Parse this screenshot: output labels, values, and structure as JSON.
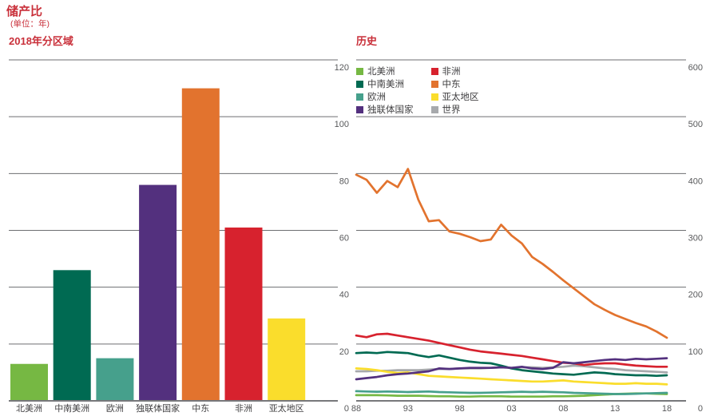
{
  "header": {
    "title": "储产比",
    "unit": "(单位：年)"
  },
  "colors": {
    "heading_red": "#c9303a",
    "axis_text": "#58595b",
    "category_text": "#414042",
    "gridline": "#6d6e71",
    "baseline": "#77787b",
    "background": "#ffffff"
  },
  "chart_data": [
    {
      "type": "bar",
      "title": "2018年分区域",
      "categories": [
        "北美洲",
        "中南美洲",
        "欧洲",
        "独联体国家",
        "中东",
        "非洲",
        "亚太地区"
      ],
      "values": [
        13,
        46,
        15,
        76,
        110,
        61,
        29
      ],
      "bar_colors": [
        "#76b843",
        "#006a52",
        "#46a08c",
        "#53307e",
        "#e2732e",
        "#d7222e",
        "#fadd2c"
      ],
      "ylim": [
        0,
        120
      ],
      "yticks": [
        0,
        20,
        40,
        60,
        80,
        100,
        120
      ],
      "y_axis_side": "right",
      "grid": true
    },
    {
      "type": "line",
      "title": "历史",
      "x_start": 1988,
      "x_end": 2018,
      "xtick_labels": [
        "88",
        "93",
        "98",
        "03",
        "08",
        "13",
        "18"
      ],
      "ylim": [
        0,
        600
      ],
      "yticks": [
        0,
        100,
        200,
        300,
        400,
        500,
        600
      ],
      "y_axis_side": "right",
      "grid": true,
      "legend_position": "top-left",
      "legend_columns": [
        [
          {
            "label": "北美洲",
            "color": "#76b843"
          },
          {
            "label": "中南美洲",
            "color": "#006a52"
          },
          {
            "label": "欧洲",
            "color": "#46a08c"
          },
          {
            "label": "独联体国家",
            "color": "#53307e"
          }
        ],
        [
          {
            "label": "非洲",
            "color": "#d7222e"
          },
          {
            "label": "中东",
            "color": "#e2732e"
          },
          {
            "label": "亚太地区",
            "color": "#fadd2c"
          },
          {
            "label": "世界",
            "color": "#a7a9ac"
          }
        ]
      ],
      "series": [
        {
          "name": "世界",
          "color": "#a7a9ac",
          "values": [
            52,
            52,
            53,
            53,
            54,
            54,
            54,
            55,
            56,
            56,
            57,
            57,
            57,
            58,
            59,
            58,
            59,
            59,
            58,
            59,
            60,
            62,
            61,
            59,
            57,
            56,
            54,
            53,
            52,
            51,
            50
          ]
        },
        {
          "name": "北美洲",
          "color": "#76b843",
          "values": [
            10,
            10,
            10,
            9.5,
            9,
            9,
            9,
            8.5,
            8,
            8,
            7.5,
            7.5,
            8,
            8,
            8,
            7.5,
            7.5,
            7.5,
            7.5,
            8,
            8,
            8.5,
            9,
            10,
            11,
            12,
            12.5,
            13,
            13,
            12.5,
            12
          ]
        },
        {
          "name": "欧洲",
          "color": "#46a08c",
          "values": [
            17,
            16.5,
            16,
            16.5,
            16,
            15.5,
            16,
            16.5,
            15.5,
            15,
            14.5,
            14,
            14,
            14.5,
            15,
            15.5,
            16,
            15.5,
            16,
            15.5,
            15,
            14,
            13.5,
            13,
            12.5,
            12,
            12,
            12.5,
            13,
            13.5,
            14
          ]
        },
        {
          "name": "中南美洲",
          "color": "#006a52",
          "values": [
            84,
            85,
            84,
            86,
            85,
            84,
            80,
            77,
            80,
            76,
            72,
            69,
            67,
            66,
            62,
            57,
            54,
            52,
            50,
            48,
            47,
            46,
            48,
            50,
            49,
            47,
            46,
            45,
            45,
            44,
            45
          ]
        },
        {
          "name": "亚太地区",
          "color": "#fadd2c",
          "values": [
            57,
            56,
            54,
            51,
            49,
            50,
            47,
            44,
            43,
            42,
            41,
            40,
            39,
            38,
            37,
            36,
            35,
            34,
            34,
            35,
            36,
            34,
            33,
            32,
            31,
            30,
            30,
            31,
            30,
            30,
            29
          ]
        },
        {
          "name": "非洲",
          "color": "#d7222e",
          "values": [
            115,
            112,
            117,
            118,
            115,
            112,
            109,
            106,
            102,
            98,
            94,
            90,
            87,
            85,
            83,
            81,
            79,
            76,
            73,
            70,
            67,
            66,
            63,
            65,
            66,
            66,
            64,
            62,
            61,
            60,
            60
          ]
        },
        {
          "name": "独联体国家",
          "color": "#53307e",
          "values": [
            38,
            40,
            42,
            45,
            47,
            48,
            50,
            52,
            57,
            56,
            57,
            58,
            58,
            58,
            59,
            58,
            60,
            57,
            56,
            58,
            68,
            66,
            68,
            70,
            72,
            73,
            72,
            74,
            73,
            74,
            75
          ]
        },
        {
          "name": "中东",
          "color": "#e2732e",
          "values": [
            398,
            389,
            366,
            387,
            376,
            408,
            354,
            316,
            318,
            298,
            294,
            288,
            281,
            284,
            310,
            291,
            277,
            253,
            241,
            227,
            212,
            198,
            184,
            170,
            160,
            151,
            144,
            137,
            131,
            122,
            111
          ]
        }
      ]
    }
  ]
}
